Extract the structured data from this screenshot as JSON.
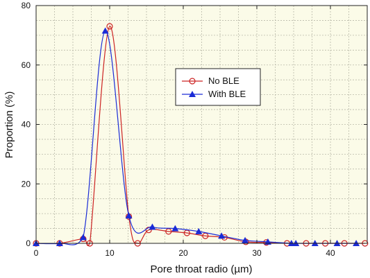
{
  "chart_data": {
    "type": "line",
    "title": "",
    "xlabel": "Pore throat radio (µm)",
    "ylabel": "Proportion (%)",
    "xlim": [
      0,
      45
    ],
    "ylim": [
      0,
      80
    ],
    "x_ticks": [
      0,
      10,
      20,
      30,
      40
    ],
    "y_ticks": [
      0,
      20,
      40,
      60,
      80
    ],
    "grid": true,
    "legend_position": "center-right",
    "plot_background": "#fbfbe8",
    "series": [
      {
        "name": "No BLE",
        "color": "#cc2222",
        "marker": "circle",
        "x": [
          0,
          3.2,
          6.4,
          7.3,
          10.0,
          12.6,
          13.8,
          15.3,
          18.0,
          20.5,
          23.0,
          25.6,
          28.5,
          31.3,
          34.1,
          36.7,
          39.3,
          41.9,
          44.7
        ],
        "y": [
          0,
          0,
          1.5,
          0,
          73.0,
          9.0,
          0,
          4.5,
          4.0,
          3.5,
          2.5,
          2.0,
          0.5,
          0.3,
          0,
          0,
          0,
          0,
          0
        ]
      },
      {
        "name": "With BLE",
        "color": "#1a2bd6",
        "marker": "triangle",
        "x": [
          0,
          3.2,
          6.4,
          9.4,
          12.6,
          15.8,
          18.9,
          22.1,
          25.2,
          28.4,
          31.5,
          34.7,
          35.3,
          37.9,
          40.9,
          43.5
        ],
        "y": [
          0,
          0,
          2.0,
          71.5,
          9.3,
          5.5,
          5.0,
          4.0,
          2.5,
          1.0,
          0.5,
          0,
          0,
          0,
          0,
          0
        ]
      }
    ]
  }
}
